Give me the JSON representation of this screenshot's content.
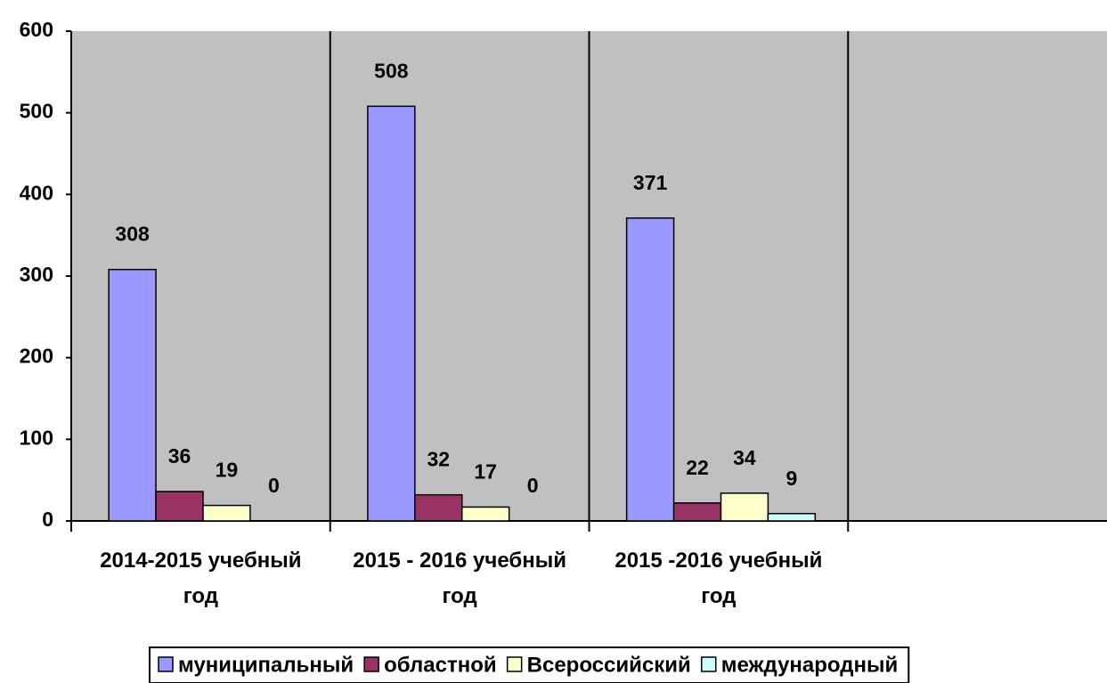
{
  "chart_data": {
    "type": "bar",
    "categories": [
      "2014-2015 учебный год",
      "2015 - 2016 учебный год",
      "2015 -2016 учебный год",
      null
    ],
    "series": [
      {
        "name": "муниципальный",
        "color": "#9999ff",
        "values": [
          308,
          508,
          371,
          null
        ]
      },
      {
        "name": "областной",
        "color": "#993366",
        "values": [
          36,
          32,
          22,
          null
        ]
      },
      {
        "name": "Всероссийский",
        "color": "#ffffcc",
        "values": [
          19,
          17,
          34,
          null
        ]
      },
      {
        "name": "международный",
        "color": "#ccffff",
        "values": [
          0,
          0,
          9,
          null
        ]
      }
    ],
    "ylim": [
      0,
      600
    ],
    "yticks": [
      0,
      100,
      200,
      300,
      400,
      500,
      600
    ],
    "grid": false,
    "legend": "bottom",
    "background": "#c0c0c0"
  }
}
